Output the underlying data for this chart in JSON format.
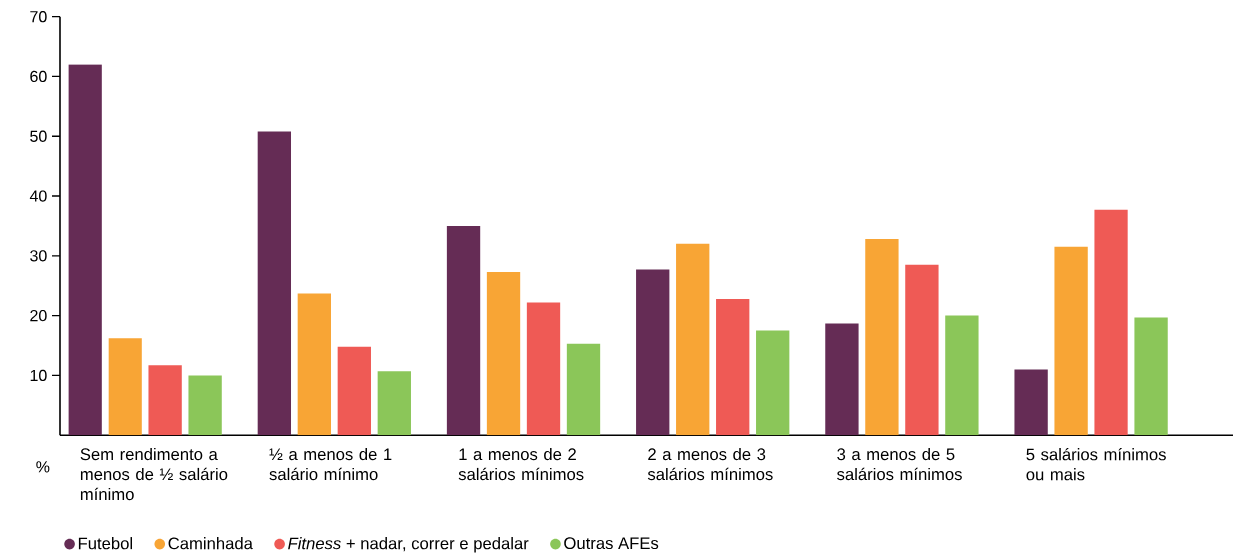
{
  "chart_data": {
    "type": "bar",
    "ylabel": "%",
    "categories": [
      "Sem rendimento a menos de ½ salário mínimo",
      "½ a menos de 1 salário mínimo",
      "1 a menos de 2 salários mínimos",
      "2 a menos de 3 salários mínimos",
      "3 a menos de 5 salários mínimos",
      "5 salários mínimos ou mais"
    ],
    "series": [
      {
        "name": "Futebol",
        "color": "#652c55",
        "values": [
          62.0,
          50.8,
          35.0,
          27.7,
          18.7,
          11.0
        ]
      },
      {
        "name": "Caminhada",
        "color": "#f8a535",
        "values": [
          16.2,
          23.7,
          27.3,
          32.0,
          32.8,
          31.5
        ]
      },
      {
        "name": "*Fitness* + nadar, correr e pedalar",
        "color": "#ef5a55",
        "values": [
          11.7,
          14.8,
          22.2,
          22.8,
          28.5,
          37.7
        ]
      },
      {
        "name": "Outras AFEs",
        "color": "#8bc659",
        "values": [
          10.0,
          10.7,
          15.3,
          17.5,
          20.0,
          19.7
        ]
      }
    ],
    "ylim": [
      0,
      70
    ],
    "yticks": [
      10,
      20,
      30,
      40,
      50,
      60,
      70
    ],
    "legend": "bottom"
  }
}
